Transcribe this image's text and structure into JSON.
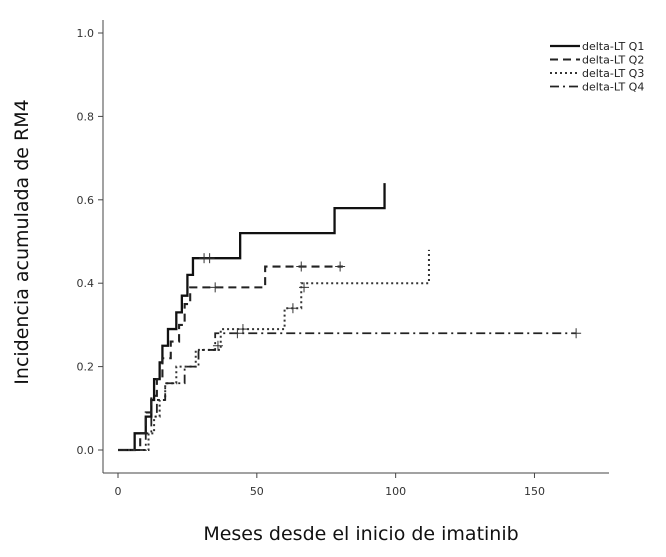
{
  "chart_data": {
    "type": "line",
    "title": "",
    "xlabel": "Meses desde el inicio de imatinib",
    "ylabel": "Incidencia acumulada de RM4",
    "xlim": [
      0,
      170
    ],
    "ylim": [
      0,
      1.0
    ],
    "x_ticks": [
      "0",
      "50",
      "100",
      "150"
    ],
    "y_ticks": [
      "0.0",
      "0.2",
      "0.4",
      "0.6",
      "0.8",
      "1.0"
    ],
    "legend_position": "top-right",
    "grid": false,
    "series": [
      {
        "name": "delta-LT Q1",
        "line_style": "solid",
        "step": true,
        "points": [
          [
            0,
            0.0
          ],
          [
            6,
            0.0
          ],
          [
            6,
            0.04
          ],
          [
            10,
            0.04
          ],
          [
            10,
            0.08
          ],
          [
            12,
            0.08
          ],
          [
            12,
            0.12
          ],
          [
            13,
            0.12
          ],
          [
            13,
            0.17
          ],
          [
            15,
            0.17
          ],
          [
            15,
            0.21
          ],
          [
            16,
            0.21
          ],
          [
            16,
            0.25
          ],
          [
            18,
            0.25
          ],
          [
            18,
            0.29
          ],
          [
            21,
            0.29
          ],
          [
            21,
            0.33
          ],
          [
            23,
            0.33
          ],
          [
            23,
            0.37
          ],
          [
            25,
            0.37
          ],
          [
            25,
            0.42
          ],
          [
            27,
            0.42
          ],
          [
            27,
            0.46
          ],
          [
            44,
            0.46
          ],
          [
            44,
            0.52
          ],
          [
            78,
            0.52
          ],
          [
            78,
            0.58
          ],
          [
            96,
            0.58
          ],
          [
            96,
            0.64
          ]
        ],
        "censored": [
          [
            31,
            0.46
          ],
          [
            33,
            0.46
          ]
        ]
      },
      {
        "name": "delta-LT Q2",
        "line_style": "dashed",
        "step": true,
        "points": [
          [
            0,
            0.0
          ],
          [
            8,
            0.0
          ],
          [
            8,
            0.04
          ],
          [
            10,
            0.04
          ],
          [
            10,
            0.09
          ],
          [
            12,
            0.09
          ],
          [
            12,
            0.13
          ],
          [
            14,
            0.13
          ],
          [
            14,
            0.17
          ],
          [
            16,
            0.17
          ],
          [
            16,
            0.22
          ],
          [
            19,
            0.22
          ],
          [
            19,
            0.26
          ],
          [
            22,
            0.26
          ],
          [
            22,
            0.3
          ],
          [
            24,
            0.3
          ],
          [
            24,
            0.35
          ],
          [
            26,
            0.35
          ],
          [
            26,
            0.39
          ],
          [
            53,
            0.39
          ],
          [
            53,
            0.44
          ],
          [
            81,
            0.44
          ]
        ],
        "censored": [
          [
            35,
            0.39
          ],
          [
            66,
            0.44
          ],
          [
            80,
            0.44
          ]
        ]
      },
      {
        "name": "delta-LT Q3",
        "line_style": "dotted",
        "step": true,
        "points": [
          [
            0,
            0.0
          ],
          [
            11,
            0.0
          ],
          [
            11,
            0.04
          ],
          [
            13,
            0.04
          ],
          [
            13,
            0.08
          ],
          [
            15,
            0.08
          ],
          [
            15,
            0.12
          ],
          [
            17,
            0.12
          ],
          [
            17,
            0.16
          ],
          [
            21,
            0.16
          ],
          [
            21,
            0.2
          ],
          [
            28,
            0.2
          ],
          [
            28,
            0.24
          ],
          [
            37,
            0.24
          ],
          [
            37,
            0.29
          ],
          [
            60,
            0.29
          ],
          [
            60,
            0.34
          ],
          [
            66,
            0.34
          ],
          [
            66,
            0.4
          ],
          [
            112,
            0.4
          ],
          [
            112,
            0.48
          ]
        ],
        "censored": [
          [
            45,
            0.29
          ],
          [
            63,
            0.34
          ],
          [
            67,
            0.39
          ]
        ]
      },
      {
        "name": "delta-LT Q4",
        "line_style": "dashdot",
        "step": true,
        "points": [
          [
            0,
            0.0
          ],
          [
            10,
            0.0
          ],
          [
            10,
            0.04
          ],
          [
            12,
            0.04
          ],
          [
            12,
            0.08
          ],
          [
            14,
            0.08
          ],
          [
            14,
            0.12
          ],
          [
            17,
            0.12
          ],
          [
            17,
            0.16
          ],
          [
            24,
            0.16
          ],
          [
            24,
            0.2
          ],
          [
            29,
            0.2
          ],
          [
            29,
            0.24
          ],
          [
            35,
            0.24
          ],
          [
            35,
            0.28
          ],
          [
            165,
            0.28
          ]
        ],
        "censored": [
          [
            36,
            0.25
          ],
          [
            43,
            0.28
          ],
          [
            165,
            0.28
          ]
        ]
      }
    ]
  }
}
